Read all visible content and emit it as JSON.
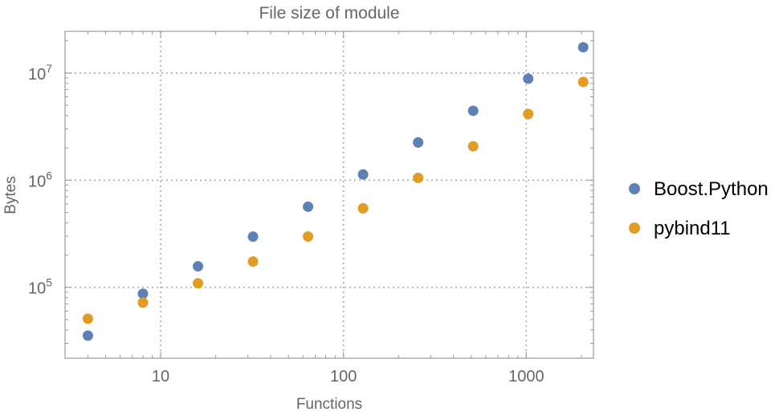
{
  "chart_data": {
    "type": "scatter",
    "title": "File size of module",
    "xlabel": "Functions",
    "ylabel": "Bytes",
    "x_scale": "log",
    "y_scale": "log",
    "xlim": [
      3.0,
      2330
    ],
    "ylim": [
      21800,
      24500000
    ],
    "grid": true,
    "legend_position": "right",
    "x_ticks": [
      {
        "value": 10,
        "label": "10"
      },
      {
        "value": 100,
        "label": "100"
      },
      {
        "value": 1000,
        "label": "1000"
      }
    ],
    "y_ticks": [
      {
        "value": 100000,
        "base": "10",
        "exp": "5"
      },
      {
        "value": 1000000,
        "base": "10",
        "exp": "6"
      },
      {
        "value": 10000000,
        "base": "10",
        "exp": "7"
      }
    ],
    "x": [
      4,
      8,
      16,
      32,
      64,
      128,
      256,
      512,
      1024,
      2048
    ],
    "series": [
      {
        "name": "Boost.Python",
        "color": "#5E81B5",
        "values": [
          35400,
          87000,
          157000,
          297000,
          565000,
          1130000,
          2250000,
          4440000,
          8850000,
          17400000
        ]
      },
      {
        "name": "pybind11",
        "color": "#E19C24",
        "values": [
          50900,
          72000,
          109000,
          174000,
          298000,
          546000,
          1050000,
          2070000,
          4140000,
          8260000
        ]
      }
    ]
  }
}
